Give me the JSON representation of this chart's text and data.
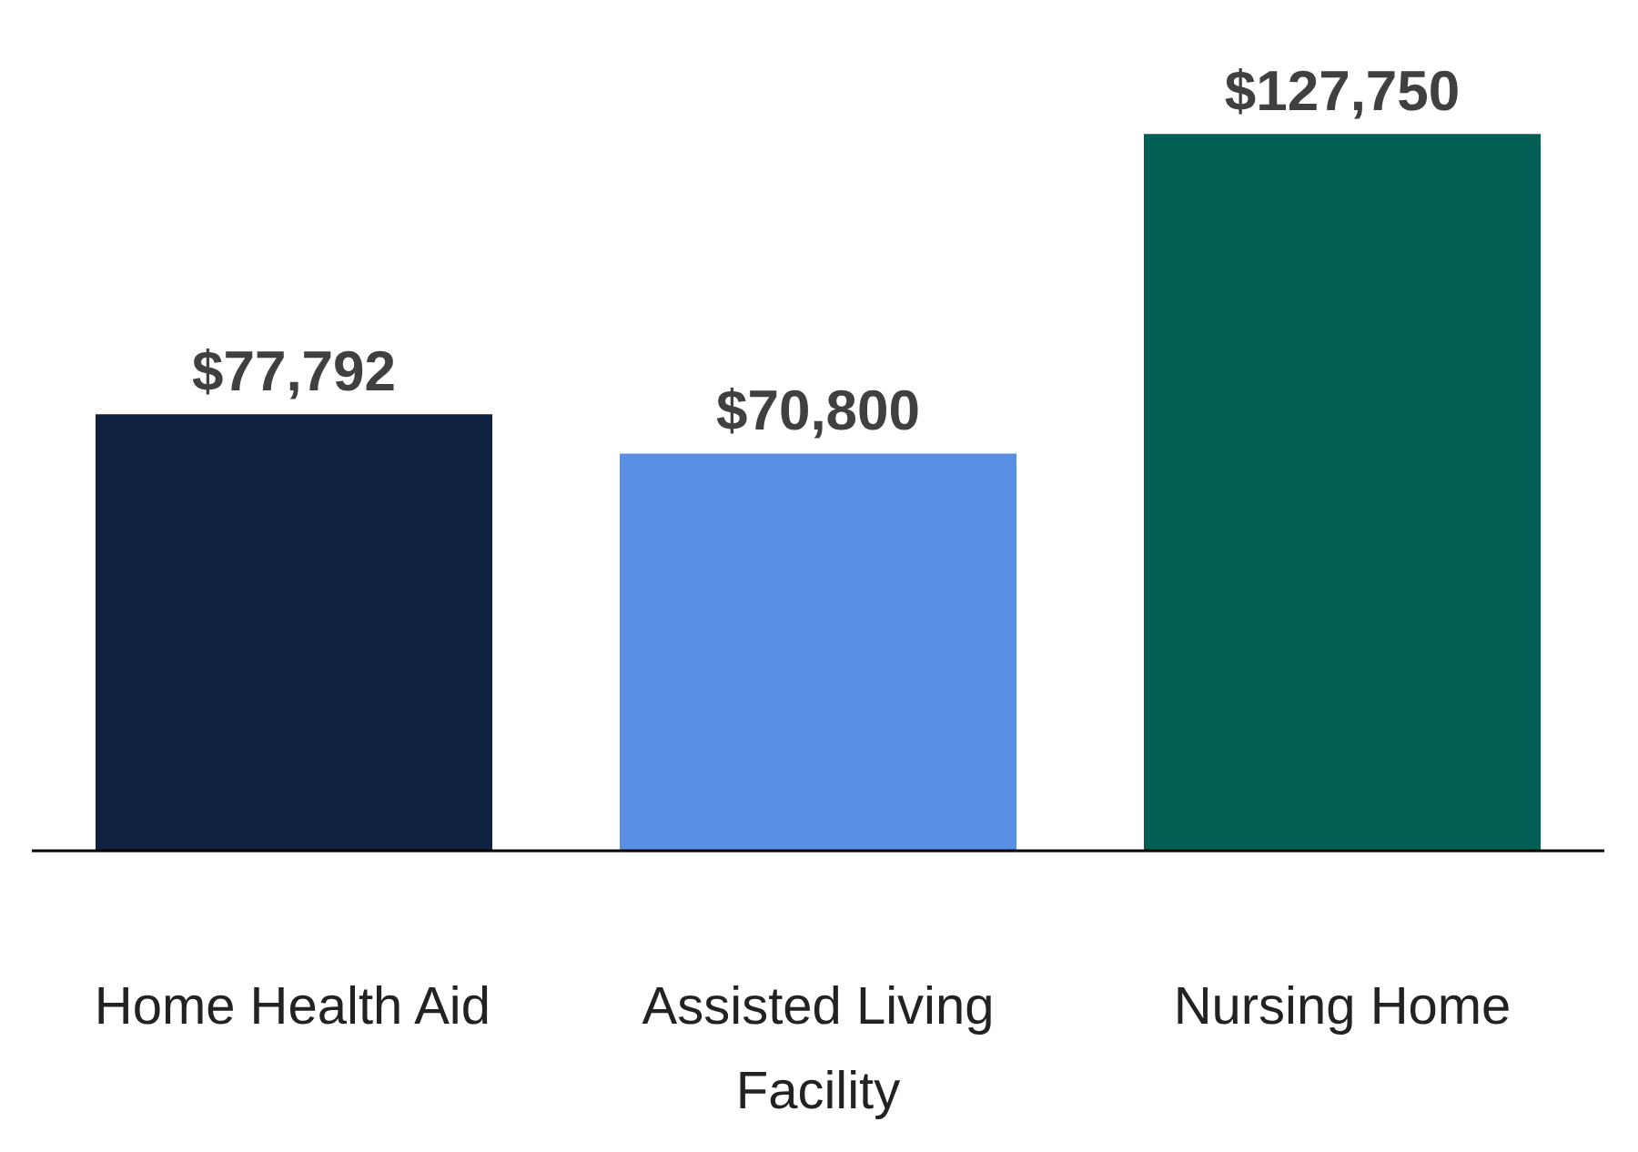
{
  "chart_data": {
    "type": "bar",
    "categories": [
      "Home Health Aid",
      "Assisted Living Facility",
      "Nursing Home"
    ],
    "values": [
      77792,
      70800,
      127750
    ],
    "colors": [
      "#10223f",
      "#5a8fe3",
      "#035f53"
    ],
    "value_labels": [
      "$77,792",
      "$70,800",
      "$127,750"
    ],
    "grid": false,
    "tick_labels": "x"
  }
}
